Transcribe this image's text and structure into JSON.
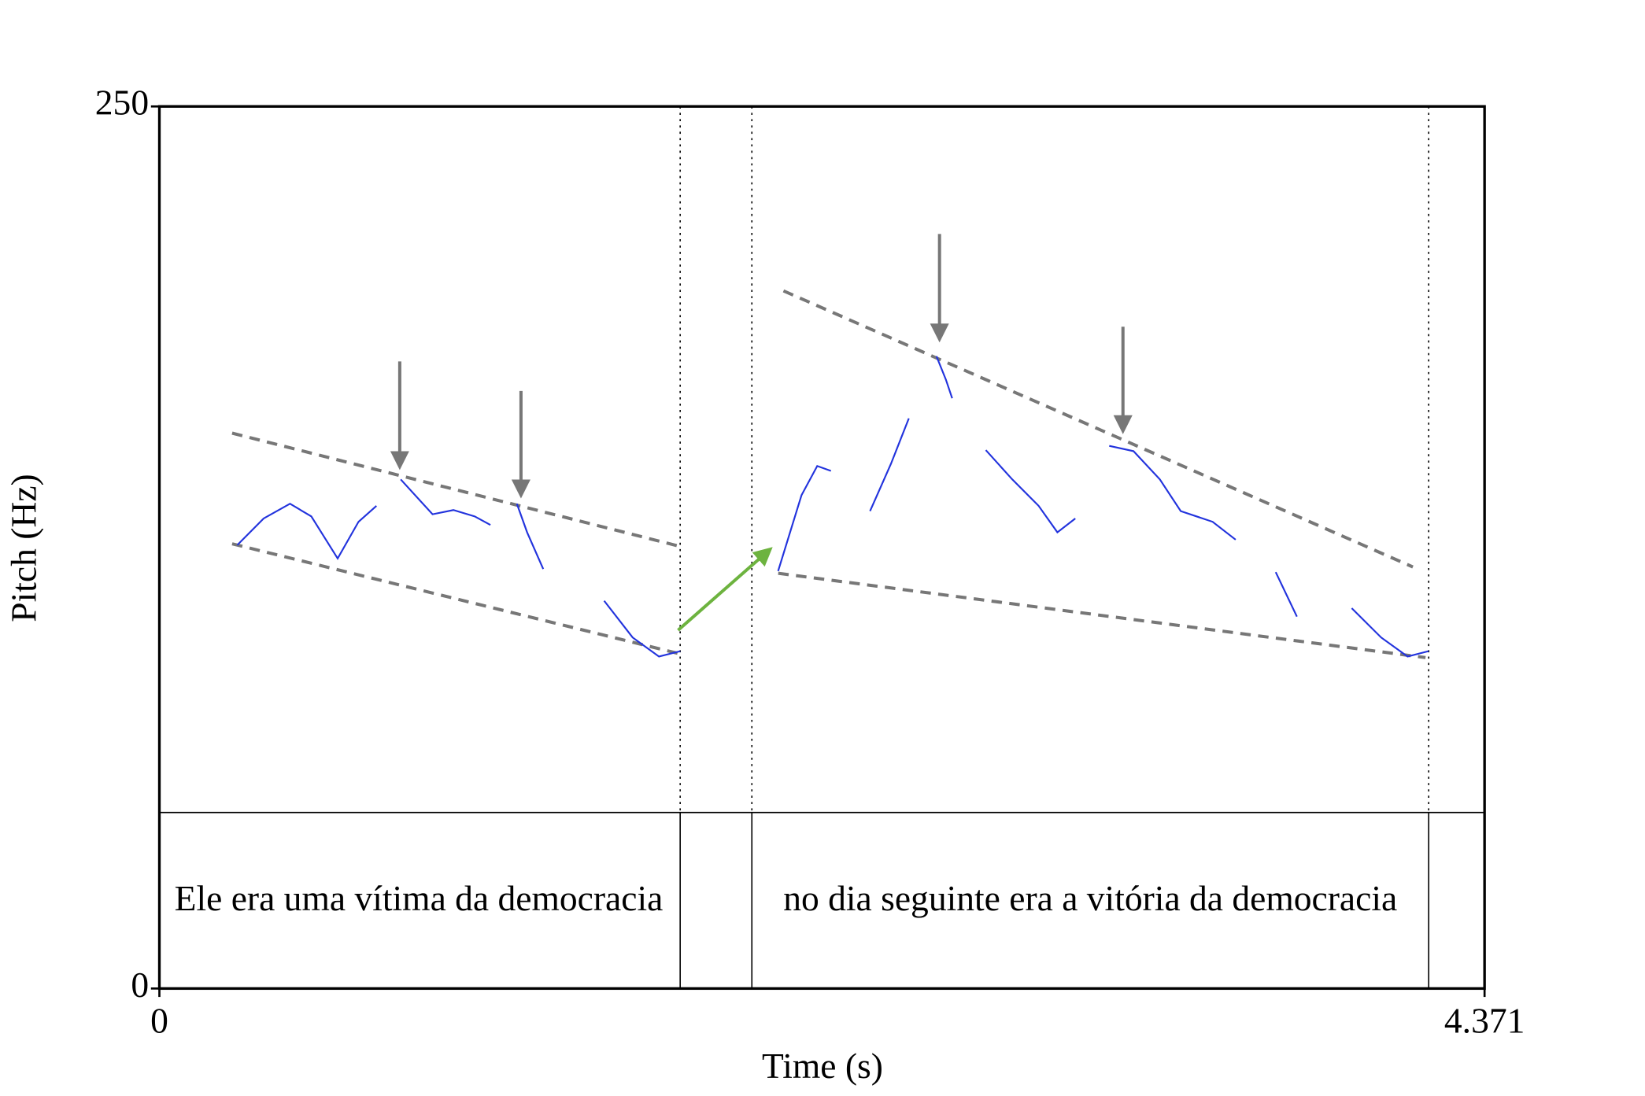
{
  "chart_data": {
    "type": "line",
    "x_label": "Time (s)",
    "y_label": "Pitch (Hz)",
    "annotations": [
      "Ele era uma vítima da democracia",
      "no dia seguinte era a vitória da democracia"
    ],
    "x": [
      0.257,
      0.344,
      0.431,
      0.501,
      0.588,
      0.657,
      0.716,
      null,
      0.796,
      0.901,
      0.97,
      1.04,
      1.092,
      null,
      1.179,
      1.213,
      1.266,
      null,
      1.467,
      1.561,
      1.648,
      1.718,
      null,
      2.041,
      2.118,
      2.17,
      2.215,
      null,
      2.344,
      2.413,
      2.472,
      null,
      2.563,
      2.594,
      2.615,
      null,
      2.726,
      2.813,
      2.9,
      2.962,
      3.021,
      null,
      3.133,
      3.213,
      3.3,
      3.369,
      3.474,
      3.55,
      null,
      3.682,
      3.752,
      null,
      3.933,
      4.03,
      4.117,
      4.186
    ],
    "series": [
      {
        "name": "Pitch",
        "color": "#2233dd",
        "values": [
          125.7,
          133.2,
          137.4,
          133.8,
          121.9,
          132.3,
          136.8,
          null,
          144.3,
          134.4,
          135.6,
          133.8,
          131.4,
          null,
          137.4,
          129.3,
          118.9,
          null,
          109.9,
          99.5,
          94.1,
          95.6,
          null,
          118.3,
          139.8,
          148.1,
          146.7,
          null,
          135.3,
          148.7,
          161.6,
          null,
          179.2,
          172.6,
          167.3,
          null,
          152.6,
          144.3,
          136.8,
          129.3,
          133.2,
          null,
          153.8,
          152.3,
          144.3,
          135.3,
          132.3,
          127.2,
          null,
          118.0,
          105.4,
          null,
          107.8,
          99.5,
          94.1,
          95.6
        ]
      }
    ],
    "xlim": [
      0,
      4.371
    ],
    "ylim": [
      0,
      250
    ],
    "xticks": [
      0,
      4.371
    ],
    "yticks": [
      0,
      250
    ]
  }
}
